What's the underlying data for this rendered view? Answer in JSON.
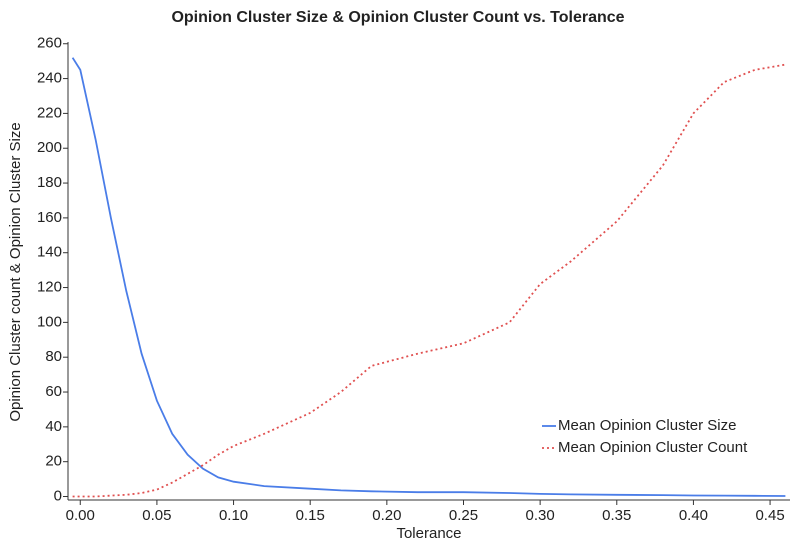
{
  "chart_data": {
    "type": "line",
    "title": "Opinion Cluster Size & Opinion Cluster Count vs. Tolerance",
    "xlabel": "Tolerance",
    "ylabel": "Opinion Cluster count & Opinion Cluster Size",
    "x": [
      -0.005,
      0,
      0.01,
      0.02,
      0.03,
      0.04,
      0.05,
      0.06,
      0.07,
      0.08,
      0.09,
      0.1,
      0.12,
      0.15,
      0.17,
      0.19,
      0.22,
      0.25,
      0.28,
      0.3,
      0.32,
      0.35,
      0.38,
      0.4,
      0.42,
      0.44,
      0.46
    ],
    "series": [
      {
        "name": "Mean Opinion Cluster Size",
        "color": "#4a7de8",
        "dash": false,
        "values": [
          252,
          245,
          205,
          160,
          118,
          82,
          55,
          36,
          24,
          16,
          11,
          8.5,
          6,
          4.5,
          3.5,
          3,
          2.5,
          2.5,
          2,
          1.5,
          1.2,
          1,
          0.8,
          0.6,
          0.5,
          0.4,
          0.3
        ]
      },
      {
        "name": "Mean Opinion Cluster Count",
        "color": "#e05050",
        "dash": true,
        "values": [
          0,
          0,
          0,
          0.5,
          1,
          2,
          4,
          8,
          13,
          18,
          24,
          29,
          36,
          48,
          60,
          75,
          82,
          88,
          100,
          122,
          135,
          158,
          190,
          220,
          238,
          245,
          248
        ]
      }
    ],
    "xlim": [
      -0.008,
      0.463
    ],
    "ylim": [
      -2,
      261
    ],
    "xticks": [
      {
        "value": 0,
        "label": "0.00"
      },
      {
        "value": 0.05,
        "label": "0.05"
      },
      {
        "value": 0.1,
        "label": "0.10"
      },
      {
        "value": 0.15,
        "label": "0.15"
      },
      {
        "value": 0.2,
        "label": "0.20"
      },
      {
        "value": 0.25,
        "label": "0.25"
      },
      {
        "value": 0.3,
        "label": "0.30"
      },
      {
        "value": 0.35,
        "label": "0.35"
      },
      {
        "value": 0.4,
        "label": "0.40"
      },
      {
        "value": 0.45,
        "label": "0.45"
      }
    ],
    "yticks": [
      0,
      20,
      40,
      60,
      80,
      100,
      120,
      140,
      160,
      180,
      200,
      220,
      240,
      260
    ],
    "legend": "lower-right"
  }
}
